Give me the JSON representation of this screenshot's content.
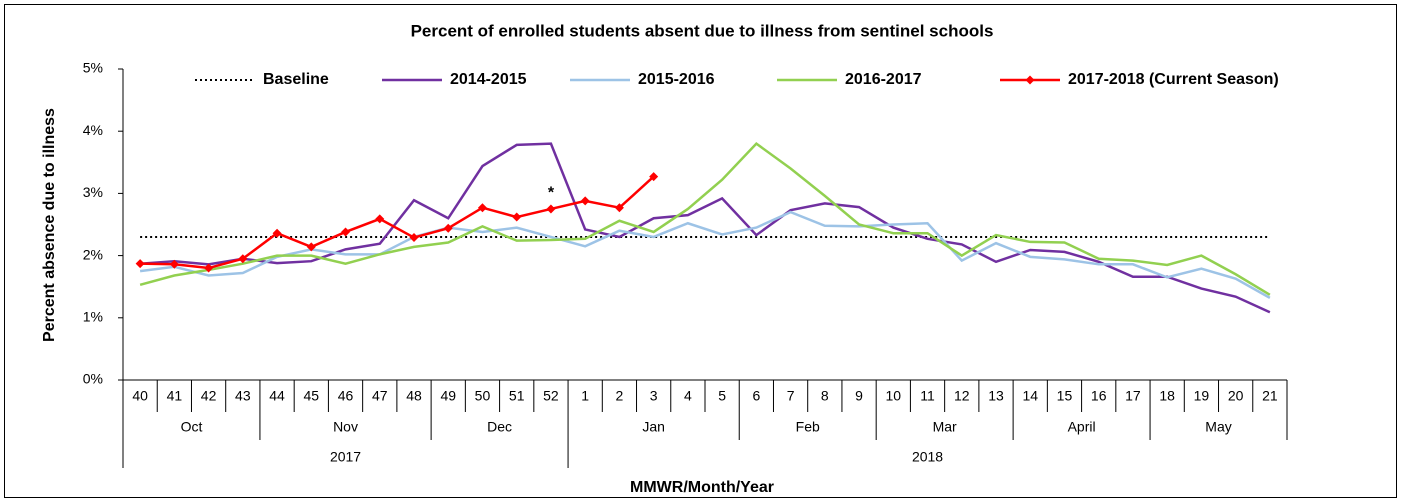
{
  "chart_data": {
    "type": "line",
    "title": "Percent of enrolled students absent due to illness from sentinel schools",
    "x_label": "MMWR/Month/Year",
    "y_label": "Percent absence due to illness",
    "annotation": "*",
    "categories": [
      "40",
      "41",
      "42",
      "43",
      "44",
      "45",
      "46",
      "47",
      "48",
      "49",
      "50",
      "51",
      "52",
      "1",
      "2",
      "3",
      "4",
      "5",
      "6",
      "7",
      "8",
      "9",
      "10",
      "11",
      "12",
      "13",
      "14",
      "15",
      "16",
      "17",
      "18",
      "19",
      "20",
      "21"
    ],
    "month_groups": [
      {
        "label": "Oct",
        "start": "40",
        "end": "43"
      },
      {
        "label": "Nov",
        "start": "44",
        "end": "48"
      },
      {
        "label": "Dec",
        "start": "49",
        "end": "52"
      },
      {
        "label": "Jan",
        "start": "1",
        "end": "5"
      },
      {
        "label": "Feb",
        "start": "6",
        "end": "9"
      },
      {
        "label": "Mar",
        "start": "10",
        "end": "13"
      },
      {
        "label": "April",
        "start": "14",
        "end": "17"
      },
      {
        "label": "May",
        "start": "18",
        "end": "21"
      }
    ],
    "year_groups": [
      {
        "label": "2017",
        "start": "40",
        "end": "52"
      },
      {
        "label": "2018",
        "start": "1",
        "end": "21"
      }
    ],
    "ylim": [
      0,
      5
    ],
    "yticks": [
      {
        "value": 0,
        "label": "0%"
      },
      {
        "value": 1,
        "label": "1%"
      },
      {
        "value": 2,
        "label": "2%"
      },
      {
        "value": 3,
        "label": "3%"
      },
      {
        "value": 4,
        "label": "4%"
      },
      {
        "value": 5,
        "label": "5%"
      }
    ],
    "grid": false,
    "legend": "top",
    "series": [
      {
        "name": "Baseline",
        "color": "#000000",
        "dash": "dotted",
        "marker": false,
        "values": [
          2.3,
          2.3,
          2.3,
          2.3,
          2.3,
          2.3,
          2.3,
          2.3,
          2.3,
          2.3,
          2.3,
          2.3,
          2.3,
          2.3,
          2.3,
          2.3,
          2.3,
          2.3,
          2.3,
          2.3,
          2.3,
          2.3,
          2.3,
          2.3,
          2.3,
          2.3,
          2.3,
          2.3,
          2.3,
          2.3,
          2.3,
          2.3,
          2.3,
          2.3
        ]
      },
      {
        "name": "2014-2015",
        "color": "#7030a0",
        "marker": false,
        "values": [
          1.87,
          1.91,
          1.86,
          1.95,
          1.88,
          1.91,
          2.1,
          2.19,
          2.89,
          2.6,
          3.44,
          3.78,
          3.8,
          2.42,
          2.3,
          2.6,
          2.65,
          2.92,
          2.33,
          2.73,
          2.84,
          2.78,
          2.45,
          2.27,
          2.18,
          1.9,
          2.09,
          2.06,
          1.9,
          1.66,
          1.66,
          1.47,
          1.34,
          1.09
        ]
      },
      {
        "name": "2015-2016",
        "color": "#9dc3e6",
        "marker": false,
        "values": [
          1.75,
          1.82,
          1.68,
          1.72,
          1.98,
          2.1,
          2.02,
          2.02,
          2.3,
          2.45,
          2.38,
          2.45,
          2.3,
          2.15,
          2.4,
          2.3,
          2.52,
          2.34,
          2.45,
          2.7,
          2.48,
          2.47,
          2.5,
          2.52,
          1.92,
          2.2,
          1.98,
          1.94,
          1.86,
          1.86,
          1.65,
          1.79,
          1.63,
          1.32
        ]
      },
      {
        "name": "2016-2017",
        "color": "#92d050",
        "marker": false,
        "values": [
          1.53,
          1.68,
          1.77,
          1.87,
          2.0,
          2.0,
          1.87,
          2.02,
          2.14,
          2.21,
          2.47,
          2.24,
          2.25,
          2.27,
          2.56,
          2.38,
          2.75,
          3.22,
          3.8,
          3.4,
          2.96,
          2.5,
          2.36,
          2.36,
          2.0,
          2.33,
          2.22,
          2.21,
          1.95,
          1.92,
          1.85,
          2.0,
          1.7,
          1.37
        ]
      },
      {
        "name": "2017-2018 (Current Season)",
        "color": "#ff0000",
        "marker": true,
        "values": [
          1.87,
          1.86,
          1.8,
          1.95,
          2.36,
          2.14,
          2.38,
          2.59,
          2.29,
          2.44,
          2.77,
          2.62,
          2.75,
          2.88,
          2.77,
          3.27,
          null,
          null,
          null,
          null,
          null,
          null,
          null,
          null,
          null,
          null,
          null,
          null,
          null,
          null,
          null,
          null,
          null,
          null
        ]
      }
    ]
  }
}
